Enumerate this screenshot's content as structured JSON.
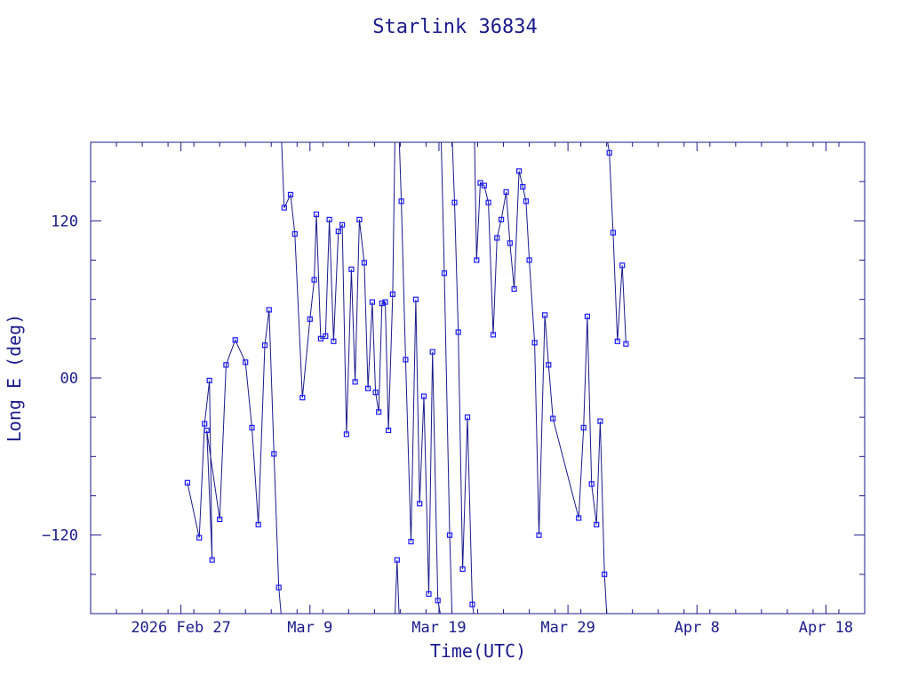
{
  "chart_data": {
    "type": "scatter",
    "title": "Starlink 36834",
    "xlabel": "Time(UTC)",
    "ylabel": "Long E (deg)",
    "x_axis": {
      "type": "date",
      "range": [
        "2026-02-20",
        "2026-04-21"
      ],
      "ticks": [
        {
          "date": "2026-02-27",
          "label": "2026 Feb 27"
        },
        {
          "date": "2026-03-09",
          "label": "Mar  9"
        },
        {
          "date": "2026-03-19",
          "label": "Mar 19"
        },
        {
          "date": "2026-03-29",
          "label": "Mar 29"
        },
        {
          "date": "2026-04-08",
          "label": "Apr  8"
        },
        {
          "date": "2026-04-18",
          "label": "Apr 18"
        }
      ]
    },
    "y_axis": {
      "range": [
        -180,
        180
      ],
      "ticks": [
        {
          "value": -120,
          "label": "−120"
        },
        {
          "value": 0,
          "label": "00"
        },
        {
          "value": 120,
          "label": "120"
        }
      ]
    },
    "grid": false,
    "line_color": "#1a1a8c",
    "marker_color": "#1a1aff",
    "series": [
      {
        "points": [
          [
            "2026-02-27T12:00",
            -80
          ],
          [
            "2026-02-28T10:00",
            -122
          ],
          [
            "2026-02-28T20:00",
            -35
          ],
          [
            "2026-02-29T05:00",
            -2
          ],
          [
            "2026-02-29T10:00",
            -139
          ],
          [
            "2026-03-01T00:00",
            -40
          ],
          [
            "2026-03-02T00:00",
            -108
          ],
          [
            "2026-03-02T12:00",
            10
          ],
          [
            "2026-03-03T05:00",
            29
          ],
          [
            "2026-03-04T00:00",
            12
          ],
          [
            "2026-03-04T12:00",
            -38
          ],
          [
            "2026-03-05T00:00",
            -112
          ],
          [
            "2026-03-05T12:00",
            25
          ],
          [
            "2026-03-05T20:00",
            52
          ],
          [
            "2026-03-06T05:00",
            -58
          ],
          [
            "2026-03-06T14:00",
            -160
          ],
          [
            "2026-03-07T00:00",
            130
          ],
          [
            "2026-03-07T12:00",
            140
          ],
          [
            "2026-03-07T20:00",
            110
          ],
          [
            "2026-03-08T10:00",
            -15
          ],
          [
            "2026-03-09T00:00",
            45
          ],
          [
            "2026-03-09T08:00",
            75
          ],
          [
            "2026-03-09T12:00",
            125
          ],
          [
            "2026-03-09T20:00",
            30
          ],
          [
            "2026-03-10T05:00",
            32
          ],
          [
            "2026-03-10T12:00",
            121
          ],
          [
            "2026-03-10T20:00",
            28
          ],
          [
            "2026-03-11T05:00",
            112
          ],
          [
            "2026-03-11T12:00",
            117
          ],
          [
            "2026-03-11T20:00",
            -43
          ],
          [
            "2026-03-12T05:00",
            83
          ],
          [
            "2026-03-12T12:00",
            -3
          ],
          [
            "2026-03-12T20:00",
            121
          ],
          [
            "2026-03-13T05:00",
            88
          ],
          [
            "2026-03-13T12:00",
            -8
          ],
          [
            "2026-03-13T20:00",
            58
          ],
          [
            "2026-03-14T02:00",
            -11
          ],
          [
            "2026-03-14T08:00",
            -26
          ],
          [
            "2026-03-14T14:00",
            57
          ],
          [
            "2026-03-14T20:00",
            58
          ],
          [
            "2026-03-15T02:00",
            -40
          ],
          [
            "2026-03-15T10:00",
            64
          ],
          [
            "2026-03-15T18:00",
            -139
          ],
          [
            "2026-03-16T02:00",
            135
          ],
          [
            "2026-03-16T10:00",
            14
          ],
          [
            "2026-03-16T20:00",
            -125
          ],
          [
            "2026-03-17T05:00",
            60
          ],
          [
            "2026-03-17T12:00",
            -96
          ],
          [
            "2026-03-17T20:00",
            -14
          ],
          [
            "2026-03-18T05:00",
            -165
          ],
          [
            "2026-03-18T12:00",
            20
          ],
          [
            "2026-03-18T22:00",
            -170
          ],
          [
            "2026-03-19T10:00",
            80
          ],
          [
            "2026-03-19T20:00",
            -120
          ],
          [
            "2026-03-20T05:00",
            134
          ],
          [
            "2026-03-20T12:00",
            35
          ],
          [
            "2026-03-20T20:00",
            -146
          ],
          [
            "2026-03-21T05:00",
            -30
          ],
          [
            "2026-03-21T14:00",
            -173
          ],
          [
            "2026-03-21T22:00",
            90
          ],
          [
            "2026-03-22T05:00",
            149
          ],
          [
            "2026-03-22T12:00",
            147
          ],
          [
            "2026-03-22T20:00",
            134
          ],
          [
            "2026-03-23T05:00",
            33
          ],
          [
            "2026-03-23T12:00",
            107
          ],
          [
            "2026-03-23T20:00",
            121
          ],
          [
            "2026-03-24T05:00",
            142
          ],
          [
            "2026-03-24T12:00",
            103
          ],
          [
            "2026-03-24T20:00",
            68
          ],
          [
            "2026-03-25T05:00",
            158
          ],
          [
            "2026-03-25T12:00",
            146
          ],
          [
            "2026-03-25T18:00",
            135
          ],
          [
            "2026-03-26T00:00",
            90
          ],
          [
            "2026-03-26T10:00",
            27
          ],
          [
            "2026-03-26T18:00",
            -120
          ],
          [
            "2026-03-27T05:00",
            48
          ],
          [
            "2026-03-27T12:00",
            10
          ],
          [
            "2026-03-27T20:00",
            -31
          ],
          [
            "2026-03-29T20:00",
            -107
          ],
          [
            "2026-03-30T05:00",
            -38
          ],
          [
            "2026-03-30T12:00",
            47
          ],
          [
            "2026-03-30T20:00",
            -81
          ],
          [
            "2026-03-31T05:00",
            -112
          ],
          [
            "2026-03-31T12:00",
            -33
          ],
          [
            "2026-03-31T20:00",
            -150
          ],
          [
            "2026-04-01T05:00",
            172
          ],
          [
            "2026-04-01T12:00",
            111
          ],
          [
            "2026-04-01T20:00",
            28
          ],
          [
            "2026-04-02T05:00",
            86
          ],
          [
            "2026-04-02T12:00",
            26
          ]
        ]
      }
    ]
  }
}
